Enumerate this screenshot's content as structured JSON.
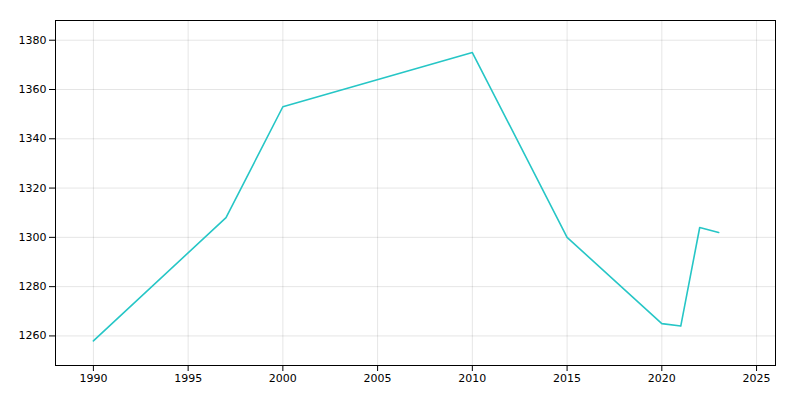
{
  "chart_data": {
    "type": "line",
    "x": [
      1990,
      1997,
      2000,
      2010,
      2015,
      2020,
      2021,
      2022,
      2023
    ],
    "values": [
      1258,
      1308,
      1353,
      1375,
      1300,
      1265,
      1264,
      1304,
      1302
    ],
    "color": "#26c6c6",
    "xlim": [
      1988,
      2026
    ],
    "ylim": [
      1248,
      1388
    ],
    "xticks": [
      1990,
      1995,
      2000,
      2005,
      2010,
      2015,
      2020,
      2025
    ],
    "yticks": [
      1260,
      1280,
      1300,
      1320,
      1340,
      1360,
      1380
    ],
    "grid": true
  }
}
